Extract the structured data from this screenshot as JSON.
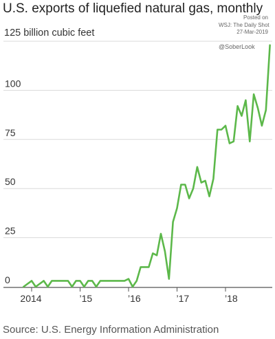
{
  "title": "U.S. exports of liquefied natural gas, monthly",
  "unit_label": "125 billion cubic feet",
  "posted": {
    "line1": "Posted on",
    "line2": "WSJ: The Daily Shot",
    "line3": "27-Mar-2019"
  },
  "handle": "@SoberLook",
  "source": "Source: U.S. Energy Information Administration",
  "colors": {
    "line": "#5cb84a",
    "grid": "#d9d9d9",
    "axis": "#555555"
  },
  "chart_data": {
    "type": "line",
    "title": "U.S. exports of liquefied natural gas, monthly",
    "ylabel": "billion cubic feet",
    "ylim": [
      0,
      125
    ],
    "yticks": [
      0,
      25,
      50,
      75,
      100,
      125
    ],
    "ytick_labels": [
      "0",
      "25",
      "50",
      "75",
      "100",
      ""
    ],
    "xticks": [
      {
        "label": "2014",
        "x": "2014-01"
      },
      {
        "label": "’15",
        "x": "2015-01"
      },
      {
        "label": "’16",
        "x": "2016-01"
      },
      {
        "label": "’17",
        "x": "2017-01"
      },
      {
        "label": "’18",
        "x": "2018-01"
      }
    ],
    "x": [
      "2013-11",
      "2014-01",
      "2014-02",
      "2014-04",
      "2014-05",
      "2014-06",
      "2014-08",
      "2014-10",
      "2014-11",
      "2014-12",
      "2015-01",
      "2015-02",
      "2015-03",
      "2015-04",
      "2015-05",
      "2015-06",
      "2015-08",
      "2015-10",
      "2015-11",
      "2015-12",
      "2016-01",
      "2016-02",
      "2016-03",
      "2016-04",
      "2016-05",
      "2016-06",
      "2016-07",
      "2016-08",
      "2016-09",
      "2016-10",
      "2016-11",
      "2016-12",
      "2017-01",
      "2017-02",
      "2017-03",
      "2017-04",
      "2017-05",
      "2017-06",
      "2017-07",
      "2017-08",
      "2017-09",
      "2017-10",
      "2017-11",
      "2017-12",
      "2018-01",
      "2018-02",
      "2018-03",
      "2018-04",
      "2018-05",
      "2018-06",
      "2018-07",
      "2018-08",
      "2018-09",
      "2018-10",
      "2018-11",
      "2018-12"
    ],
    "series": [
      {
        "values": [
          0,
          3,
          0,
          3,
          0,
          3,
          3,
          3,
          0,
          3,
          3,
          0,
          3,
          3,
          0,
          3,
          3,
          3,
          3,
          3,
          4,
          0,
          3,
          10,
          10,
          10,
          17,
          16,
          27,
          18,
          4,
          33,
          40,
          52,
          52,
          45,
          50,
          61,
          53,
          54,
          46,
          55,
          80,
          80,
          82,
          73,
          74,
          92,
          87,
          95,
          74,
          98,
          91,
          82,
          90,
          123
        ]
      }
    ]
  }
}
